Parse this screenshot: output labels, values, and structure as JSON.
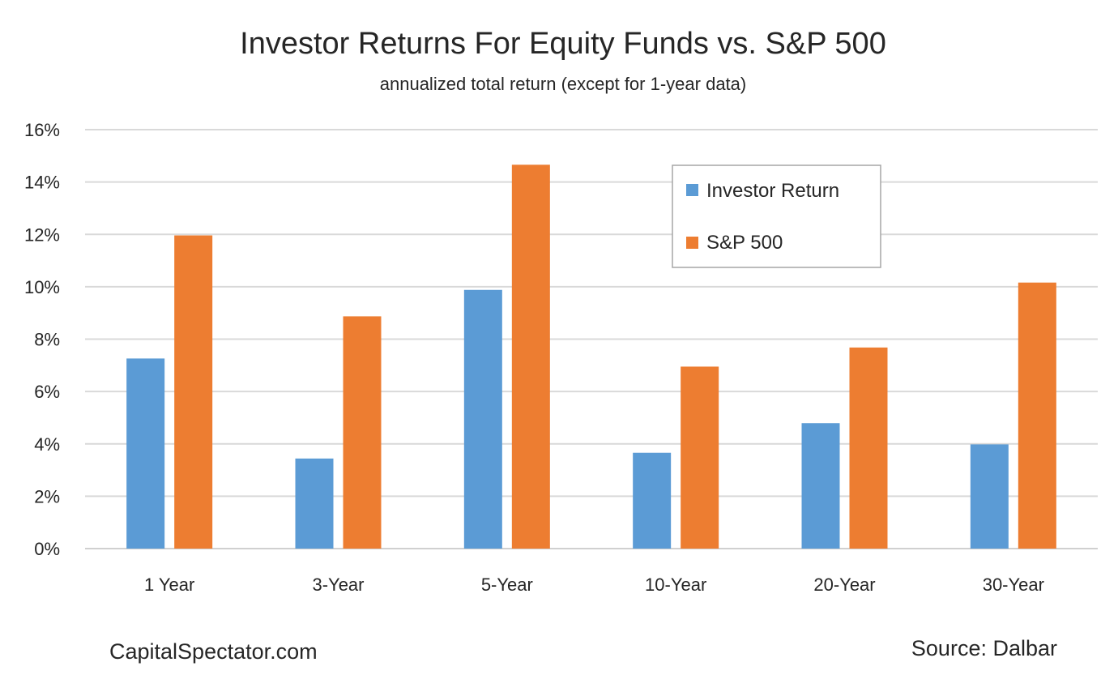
{
  "chart_data": {
    "type": "bar",
    "title": "Investor Returns For Equity Funds vs. S&P 500",
    "subtitle": "annualized total return (except for 1-year data)",
    "categories": [
      "1 Year",
      "3-Year",
      "5-Year",
      "10-Year",
      "20-Year",
      "30-Year"
    ],
    "series": [
      {
        "name": "Investor Return",
        "color": "#5b9bd5",
        "values": [
          7.26,
          3.44,
          9.88,
          3.66,
          4.79,
          3.98
        ]
      },
      {
        "name": "S&P 500",
        "color": "#ed7d31",
        "values": [
          11.96,
          8.87,
          14.66,
          6.95,
          7.68,
          10.16
        ]
      }
    ],
    "ylim": [
      0,
      16
    ],
    "yticks": [
      0,
      2,
      4,
      6,
      8,
      10,
      12,
      14,
      16
    ],
    "ytick_labels": [
      "0%",
      "2%",
      "4%",
      "6%",
      "8%",
      "10%",
      "12%",
      "14%",
      "16%"
    ],
    "xlabel": "",
    "ylabel": "",
    "grid": true,
    "legend_position": "top-right"
  },
  "footer": {
    "left": "CapitalSpectator.com",
    "right": "Source: Dalbar"
  }
}
